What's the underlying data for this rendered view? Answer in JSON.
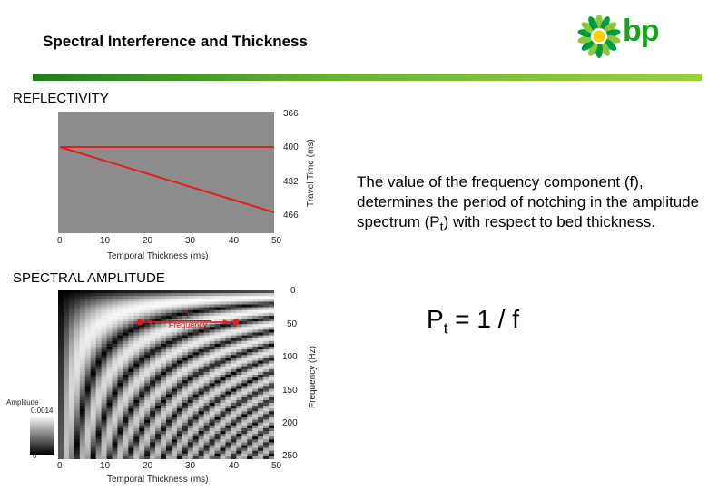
{
  "header": {
    "title": "Spectral Interference and Thickness",
    "logo_text": "bp",
    "accent_color": "#5cb531",
    "logo_colors": [
      "#009b3a",
      "#8cc63f",
      "#ffd100"
    ]
  },
  "reflectivity": {
    "section_label": "REFLECTIVITY",
    "x_ticks": [
      "0",
      "10",
      "20",
      "30",
      "40",
      "50"
    ],
    "x_label": "Temporal Thickness (ms)",
    "y_ticks": [
      "366",
      "400",
      "432",
      "466"
    ],
    "y_label": "Travel Time (ms)",
    "line_color": "#e02020",
    "background_color": "#8c8c8c"
  },
  "spectral": {
    "section_label": "SPECTRAL AMPLITUDE",
    "x_ticks": [
      "0",
      "10",
      "20",
      "30",
      "40",
      "50"
    ],
    "x_label": "Temporal Thickness (ms)",
    "y_ticks": [
      "0",
      "50",
      "100",
      "150",
      "200",
      "250"
    ],
    "y_label": "Frequency (Hz)",
    "period_label": {
      "numerator": "1",
      "denominator": "Frequency"
    },
    "colorbar": {
      "title": "Amplitude",
      "max": "0.0014",
      "min": "0"
    }
  },
  "explanation": {
    "line1": "The value of the frequency component (f), determines the period of notching in the amplitude spectrum (P",
    "sub": "t",
    "line2": ") with respect to bed thickness."
  },
  "formula": {
    "p": "P",
    "sub": "t",
    "rest": "= 1 / f"
  }
}
